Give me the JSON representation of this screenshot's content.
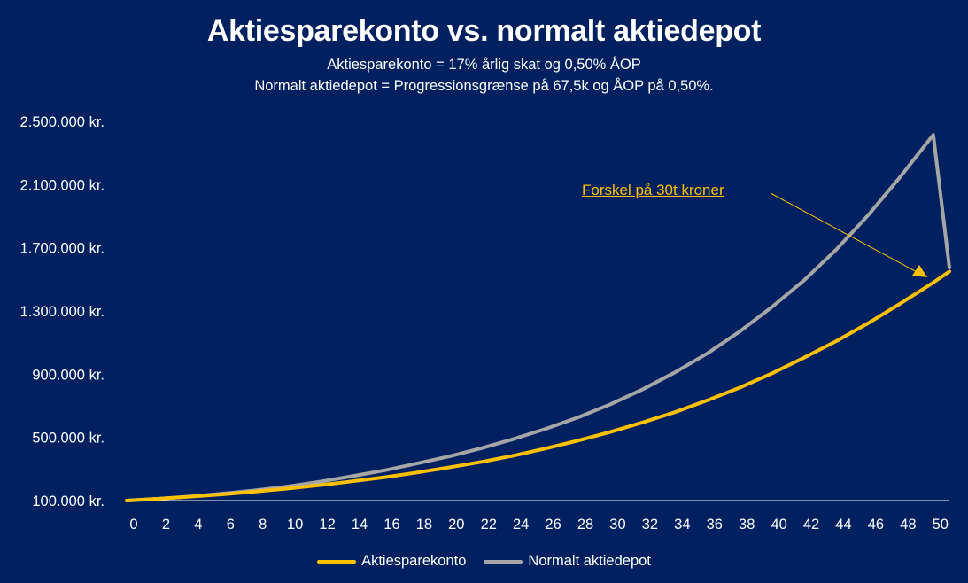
{
  "colors": {
    "background": "#002060",
    "aktiesparekonto": "#ffc000",
    "normalt": "#a6a6a6",
    "text": "#ffffff"
  },
  "chart_data": {
    "type": "line",
    "title": "Aktiesparekonto vs. normalt aktiedepot",
    "subtitle_1": "Aktiesparekonto = 17% årlig skat og 0,50% ÅOP",
    "subtitle_2": "Normalt aktiedepot = Progressionsgrænse på 67,5k og ÅOP på 0,50%.",
    "xlabel": "",
    "ylabel": "",
    "xlim": [
      0,
      51
    ],
    "ylim": [
      100000,
      2500000
    ],
    "x_ticks": [
      0,
      2,
      4,
      6,
      8,
      10,
      12,
      14,
      16,
      18,
      20,
      22,
      24,
      26,
      28,
      30,
      32,
      34,
      36,
      38,
      40,
      42,
      44,
      46,
      48,
      50
    ],
    "y_ticks": [
      100000,
      500000,
      900000,
      1300000,
      1700000,
      2100000,
      2500000
    ],
    "y_tick_labels": [
      "100.000 kr.",
      "500.000 kr.",
      "900.000 kr.",
      "1.300.000 kr.",
      "1.700.000 kr.",
      "2.100.000 kr.",
      "2.500.000 kr."
    ],
    "legend_position": "bottom",
    "grid": false,
    "series": [
      {
        "name": "Aktiesparekonto",
        "x": [
          0,
          2,
          4,
          6,
          8,
          10,
          12,
          14,
          16,
          18,
          20,
          22,
          24,
          26,
          28,
          30,
          32,
          34,
          36,
          38,
          40,
          42,
          44,
          46,
          48,
          50,
          51
        ],
        "values": [
          100000,
          112000,
          125000,
          140000,
          157000,
          176000,
          198000,
          222000,
          248000,
          278000,
          310000,
          345000,
          385000,
          430000,
          480000,
          535000,
          595000,
          660000,
          735000,
          815000,
          905000,
          1005000,
          1110000,
          1225000,
          1350000,
          1480000,
          1550000
        ]
      },
      {
        "name": "Normalt aktiedepot",
        "x": [
          0,
          2,
          4,
          6,
          8,
          10,
          12,
          14,
          16,
          18,
          20,
          22,
          24,
          26,
          28,
          30,
          32,
          34,
          36,
          38,
          40,
          42,
          44,
          46,
          48,
          50,
          51
        ],
        "values": [
          100000,
          112000,
          127000,
          145000,
          165000,
          190000,
          220000,
          255000,
          292000,
          335000,
          380000,
          432000,
          490000,
          555000,
          627000,
          710000,
          805000,
          912000,
          1032000,
          1170000,
          1325000,
          1495000,
          1690000,
          1910000,
          2155000,
          2415000,
          1575000
        ]
      }
    ],
    "annotation": {
      "text": "Forskel på 30t kroner"
    }
  }
}
